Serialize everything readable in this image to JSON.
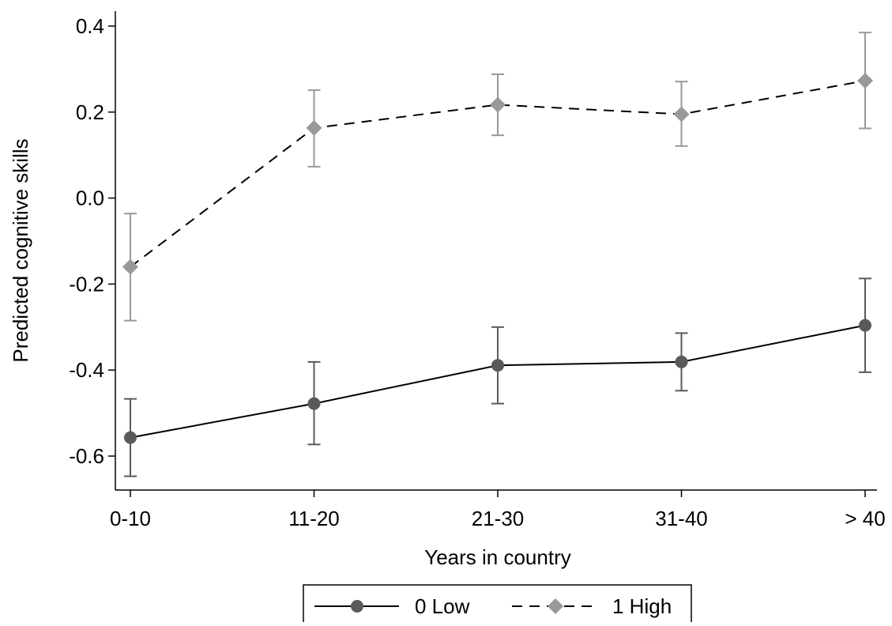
{
  "chart_data": {
    "type": "line",
    "title": "",
    "xlabel": "Years in country",
    "ylabel": "Predicted cognitive skills",
    "categories": [
      "0-10",
      "11-20",
      "21-30",
      "31-40",
      "> 40"
    ],
    "ylim": [
      -0.68,
      0.43
    ],
    "yticks": [
      0.4,
      0.2,
      0.0,
      -0.2,
      -0.4,
      -0.6
    ],
    "ytick_labels": [
      "0.4",
      "0.2",
      "0.0",
      "-0.2",
      "-0.4",
      "-0.6"
    ],
    "grid": false,
    "legend_position": "bottom",
    "series": [
      {
        "name": "0 Low",
        "marker": "circle",
        "line_style": "solid",
        "color": "#5a5a5a",
        "values": [
          -0.557,
          -0.478,
          -0.389,
          -0.381,
          -0.296
        ],
        "ci_lower": [
          -0.647,
          -0.573,
          -0.478,
          -0.448,
          -0.405
        ],
        "ci_upper": [
          -0.467,
          -0.381,
          -0.3,
          -0.314,
          -0.187
        ]
      },
      {
        "name": "1 High",
        "marker": "diamond",
        "line_style": "dashed",
        "color": "#999999",
        "values": [
          -0.16,
          0.163,
          0.217,
          0.195,
          0.273
        ],
        "ci_lower": [
          -0.285,
          0.073,
          0.146,
          0.121,
          0.162
        ],
        "ci_upper": [
          -0.036,
          0.251,
          0.288,
          0.271,
          0.385
        ]
      }
    ]
  }
}
